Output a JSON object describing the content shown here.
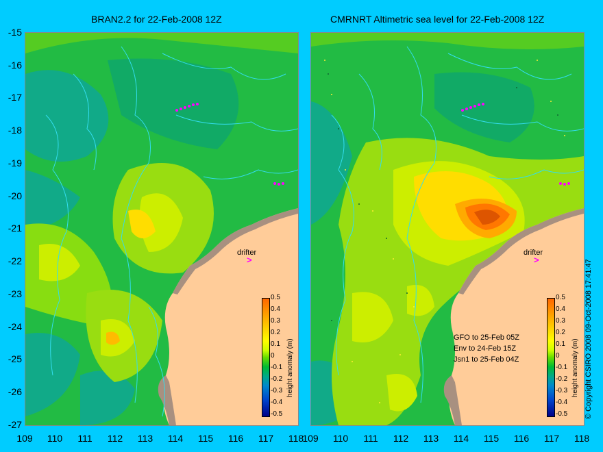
{
  "left_panel": {
    "title": "BRAN2.2 for 22-Feb-2008 12Z"
  },
  "right_panel": {
    "title": "CMRNRT Altimetric sea level  for 22-Feb-2008 12Z",
    "pass_info": [
      "GFO to 25-Feb 05Z",
      "Env to 24-Feb 15Z",
      "Jsn1 to 25-Feb 04Z"
    ]
  },
  "y_ticks": [
    "-15",
    "-16",
    "-17",
    "-18",
    "-19",
    "-20",
    "-21",
    "-22",
    "-23",
    "-24",
    "-25",
    "-26",
    "-27"
  ],
  "x_ticks": [
    "109",
    "110",
    "111",
    "112",
    "113",
    "114",
    "115",
    "116",
    "117",
    "118"
  ],
  "colorbar": {
    "title": "height anomaly (m)",
    "labels": [
      "0.5",
      "0.4",
      "0.3",
      "0.2",
      "0.1",
      "0",
      "-0.1",
      "-0.2",
      "-0.3",
      "-0.4",
      "-0.5"
    ]
  },
  "drifter": {
    "label": "drifter",
    "marker": ">"
  },
  "copyright": "© Copyright CSIRO 2008   09-Oct-2008 17:41:47",
  "colors": {
    "background": "#00ccff",
    "land": "#ffcc99",
    "coast_fill": "#a89080",
    "contour": "#33ddee",
    "marker": "#ff00ff"
  }
}
